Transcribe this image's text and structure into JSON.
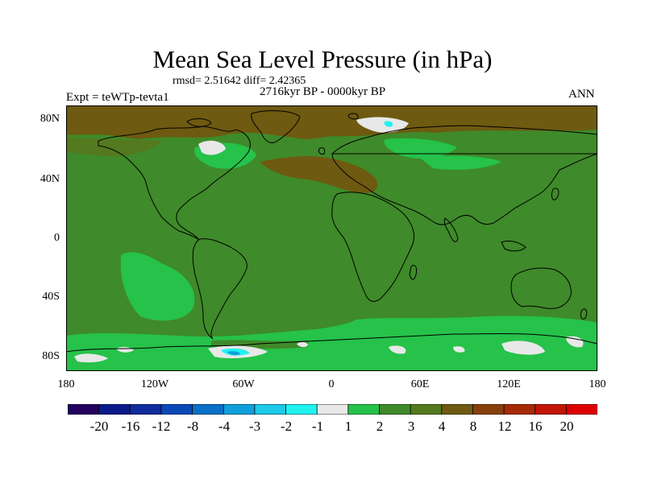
{
  "title": "Mean Sea Level Pressure (in hPa)",
  "stats": "rmsd= 2.51642  diff= 2.42365",
  "period": "2716kyr BP - 0000kyr BP",
  "experiment": "Expt = teWTp-tevta1",
  "season": "ANN",
  "lat_labels": [
    "80N",
    "40N",
    "0",
    "40S",
    "80S"
  ],
  "lon_labels": [
    "180",
    "120W",
    "60W",
    "0",
    "60E",
    "120E",
    "180"
  ],
  "colorbar": {
    "labels": [
      "-20",
      "-16",
      "-12",
      "-8",
      "-4",
      "-3",
      "-2",
      "-1",
      "1",
      "2",
      "3",
      "4",
      "8",
      "12",
      "16",
      "20"
    ],
    "colors": [
      "#24005f",
      "#0a1a8a",
      "#0f2c9c",
      "#0b49b5",
      "#0a70c8",
      "#0fa0dc",
      "#1ec8e8",
      "#20f2f0",
      "#e8e8e8",
      "#26c24a",
      "#3f8a2a",
      "#537a1e",
      "#6e5a10",
      "#87400c",
      "#a52a08",
      "#c21505",
      "#dd0000"
    ]
  },
  "map_colors": {
    "ocean_base": "#3f8a2a",
    "positive_4_8": "#6e5a10",
    "positive_3_4": "#537a1e",
    "positive_1_2": "#26c24a",
    "near_zero": "#e8e8e8",
    "negative_2_1": "#20f2f0",
    "negative_4_3": "#0fa0dc",
    "coast": "#000000"
  }
}
